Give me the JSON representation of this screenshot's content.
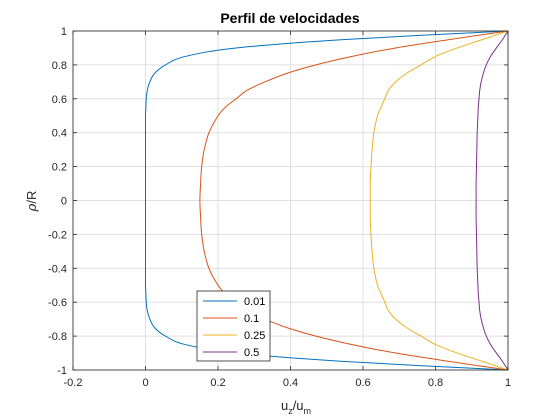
{
  "chart_data": {
    "type": "line",
    "title": "Perfil de velocidades",
    "xlabel": {
      "base": "u",
      "sub1": "z",
      "sep": "/u",
      "sub2": "m"
    },
    "ylabel": {
      "greek": "ρ",
      "rest": "/R"
    },
    "xlim": [
      -0.2,
      1
    ],
    "ylim": [
      -1,
      1
    ],
    "xticks": [
      -0.2,
      0,
      0.2,
      0.4,
      0.6,
      0.8,
      1
    ],
    "xtick_labels": [
      "-0.2",
      "0",
      "0.2",
      "0.4",
      "0.6",
      "0.8",
      "1"
    ],
    "yticks": [
      -1,
      -0.8,
      -0.6,
      -0.4,
      -0.2,
      0,
      0.2,
      0.4,
      0.6,
      0.8,
      1
    ],
    "ytick_labels": [
      "-1",
      "-0.8",
      "-0.6",
      "-0.4",
      "-0.2",
      "0",
      "0.2",
      "0.4",
      "0.6",
      "0.8",
      "1"
    ],
    "grid": true,
    "legend_position": "bottom-center",
    "y_samples": [
      -1,
      -0.95,
      -0.9,
      -0.85,
      -0.8,
      -0.75,
      -0.7,
      -0.65,
      -0.6,
      -0.55,
      -0.5,
      -0.4,
      -0.3,
      -0.2,
      -0.1,
      0,
      0.1,
      0.2,
      0.3,
      0.4,
      0.5,
      0.55,
      0.6,
      0.65,
      0.7,
      0.75,
      0.8,
      0.85,
      0.9,
      0.95,
      1
    ],
    "series": [
      {
        "name": "0.01",
        "color": "#0072BD",
        "x": [
          1,
          0.55,
          0.25,
          0.11,
          0.055,
          0.025,
          0.012,
          0.005,
          0.002,
          0.001,
          0,
          0,
          0,
          0,
          0,
          0,
          0,
          0,
          0,
          0,
          0,
          0.001,
          0.002,
          0.005,
          0.012,
          0.025,
          0.055,
          0.11,
          0.25,
          0.55,
          1
        ]
      },
      {
        "name": "0.1",
        "color": "#D95319",
        "x": [
          1,
          0.84,
          0.69,
          0.57,
          0.47,
          0.39,
          0.33,
          0.28,
          0.25,
          0.22,
          0.2,
          0.175,
          0.162,
          0.155,
          0.152,
          0.15,
          0.152,
          0.155,
          0.162,
          0.175,
          0.2,
          0.22,
          0.25,
          0.28,
          0.33,
          0.39,
          0.47,
          0.57,
          0.69,
          0.84,
          1
        ]
      },
      {
        "name": "0.25",
        "color": "#EDB120",
        "x": [
          1,
          0.93,
          0.86,
          0.8,
          0.76,
          0.72,
          0.69,
          0.67,
          0.66,
          0.65,
          0.64,
          0.63,
          0.625,
          0.622,
          0.62,
          0.62,
          0.62,
          0.622,
          0.625,
          0.63,
          0.64,
          0.65,
          0.66,
          0.67,
          0.69,
          0.72,
          0.76,
          0.8,
          0.86,
          0.93,
          1
        ]
      },
      {
        "name": "0.5",
        "color": "#7E2F8E",
        "x": [
          1,
          0.985,
          0.968,
          0.952,
          0.94,
          0.932,
          0.926,
          0.922,
          0.92,
          0.918,
          0.917,
          0.915,
          0.914,
          0.913,
          0.912,
          0.912,
          0.912,
          0.913,
          0.914,
          0.915,
          0.917,
          0.918,
          0.92,
          0.922,
          0.926,
          0.932,
          0.94,
          0.952,
          0.968,
          0.985,
          1
        ]
      }
    ]
  }
}
